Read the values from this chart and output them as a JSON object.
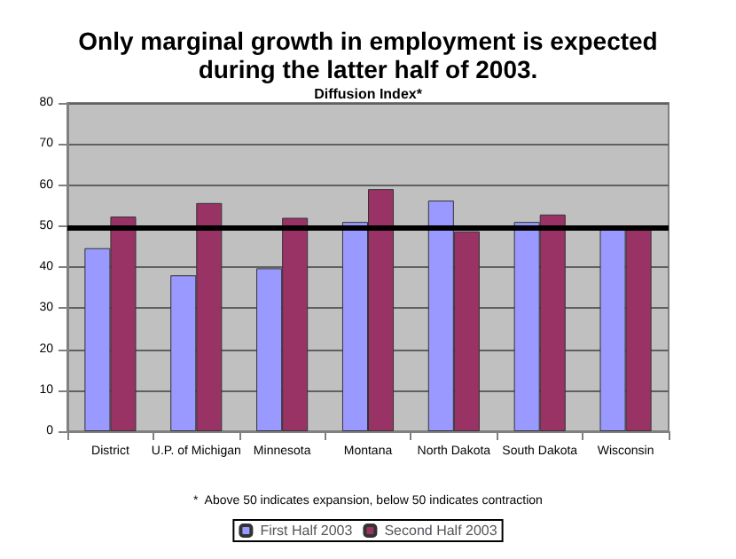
{
  "chart_data": {
    "type": "bar",
    "title": "Only marginal growth in employment is expected\nduring the latter half of 2003.",
    "subtitle": "Diffusion Index*",
    "categories": [
      "District",
      "U.P. of Michigan",
      "Minnesota",
      "Montana",
      "North Dakota",
      "South Dakota",
      "Wisconsin"
    ],
    "series": [
      {
        "name": "First Half 2003",
        "color": "#9999ff",
        "values": [
          44.6,
          38,
          39.7,
          51,
          56.2,
          51,
          49.4
        ]
      },
      {
        "name": "Second Half 2003",
        "color": "#993366",
        "values": [
          52.3,
          55.6,
          52,
          59,
          48.7,
          52.8,
          49.4
        ]
      }
    ],
    "ylim": [
      0,
      80
    ],
    "yticks": [
      0,
      10,
      20,
      30,
      40,
      50,
      60,
      70,
      80
    ],
    "grid": "y",
    "legend": "bottom",
    "ref_lines": [
      {
        "axis": "y",
        "value": 49.5,
        "color": "#000000"
      }
    ],
    "annotations": [
      "*  Above 50 indicates expansion, below 50 indicates contraction"
    ]
  }
}
